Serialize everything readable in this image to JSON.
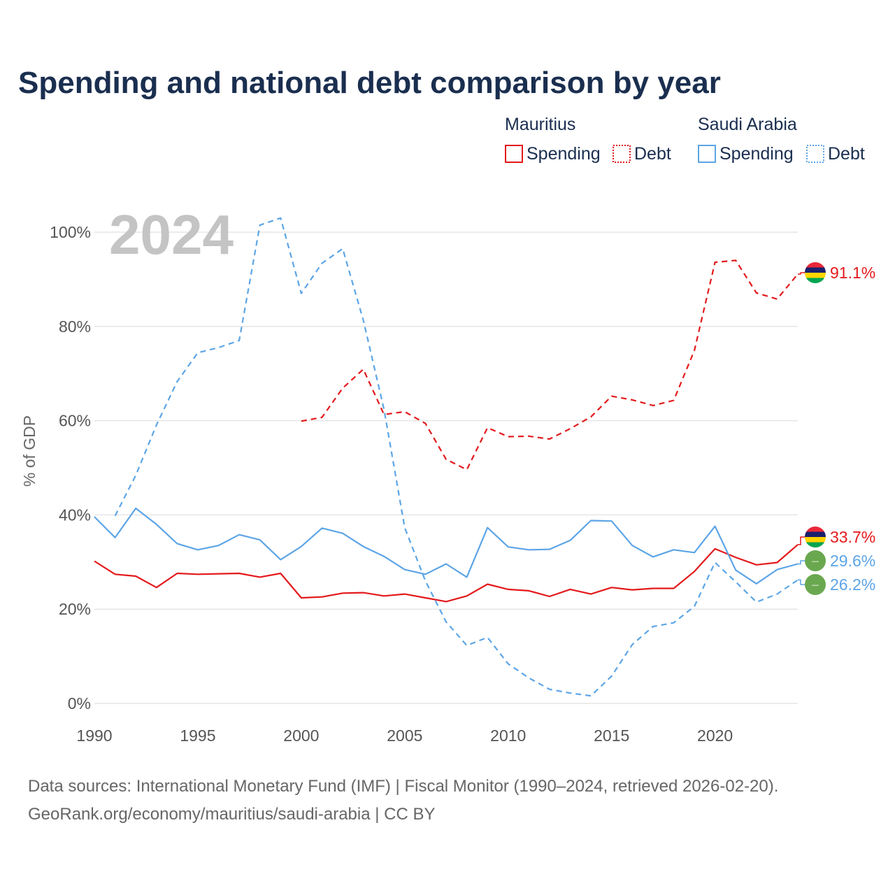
{
  "title": "Spending and national debt comparison by year",
  "year_overlay": "2024",
  "legend": {
    "groups": [
      {
        "name": "Mauritius",
        "color": "#e31a1c",
        "items": [
          {
            "label": "Spending",
            "style": "solid"
          },
          {
            "label": "Debt",
            "style": "dotted"
          }
        ]
      },
      {
        "name": "Saudi Arabia",
        "color": "#5da5e6",
        "items": [
          {
            "label": "Spending",
            "style": "solid"
          },
          {
            "label": "Debt",
            "style": "dotted"
          }
        ]
      }
    ]
  },
  "source_line1": "Data sources: International Monetary Fund (IMF) | Fiscal Monitor (1990–2024, retrieved 2026-02-20).",
  "source_line2": "GeoRank.org/economy/mauritius/saudi-arabia | CC BY",
  "chart_data": {
    "type": "line",
    "title": "Spending and national debt comparison by year",
    "xlabel": "",
    "ylabel": "% of GDP",
    "xlim": [
      1990,
      2024
    ],
    "ylim": [
      0,
      100
    ],
    "x_ticks": [
      1990,
      1995,
      2000,
      2005,
      2010,
      2015,
      2020
    ],
    "y_ticks": [
      0,
      20,
      40,
      60,
      80,
      100
    ],
    "y_tick_labels": [
      "0%",
      "20%",
      "40%",
      "60%",
      "80%",
      "100%"
    ],
    "grid": true,
    "series": [
      {
        "name": "Mauritius Spending",
        "country": "Mauritius",
        "kind": "Spending",
        "color": "#e31a1c",
        "dash": "solid",
        "flag": "mauritius",
        "end_label": "33.7%",
        "x": [
          1990,
          1991,
          1992,
          1993,
          1994,
          1995,
          1996,
          1997,
          1998,
          1999,
          2000,
          2001,
          2002,
          2003,
          2004,
          2005,
          2006,
          2007,
          2008,
          2009,
          2010,
          2011,
          2012,
          2013,
          2014,
          2015,
          2016,
          2017,
          2018,
          2019,
          2020,
          2021,
          2022,
          2023,
          2024
        ],
        "y": [
          30.2,
          27.4,
          27.0,
          24.6,
          27.6,
          27.4,
          27.5,
          27.6,
          26.8,
          27.6,
          22.4,
          22.6,
          23.4,
          23.5,
          22.8,
          23.2,
          22.4,
          21.6,
          22.8,
          25.3,
          24.2,
          23.9,
          22.7,
          24.2,
          23.2,
          24.6,
          24.1,
          24.4,
          24.4,
          28.0,
          32.8,
          31.0,
          29.4,
          29.9,
          33.7
        ]
      },
      {
        "name": "Mauritius Debt",
        "country": "Mauritius",
        "kind": "Debt",
        "color": "#e31a1c",
        "dash": "dashed",
        "flag": "mauritius",
        "end_label": "91.1%",
        "x": [
          2000,
          2001,
          2002,
          2003,
          2004,
          2005,
          2006,
          2007,
          2008,
          2009,
          2010,
          2011,
          2012,
          2013,
          2014,
          2015,
          2016,
          2017,
          2018,
          2019,
          2020,
          2021,
          2022,
          2023,
          2024
        ],
        "y": [
          59.9,
          60.7,
          66.9,
          70.9,
          61.3,
          61.9,
          59.4,
          51.8,
          49.6,
          58.5,
          56.6,
          56.7,
          56.1,
          58.3,
          60.8,
          65.2,
          64.4,
          63.2,
          64.3,
          74.9,
          93.6,
          94.0,
          87.1,
          85.8,
          91.1
        ]
      },
      {
        "name": "Saudi Arabia Spending",
        "country": "Saudi Arabia",
        "kind": "Spending",
        "color": "#5da5e6",
        "dash": "solid",
        "flag": "saudi",
        "end_label": "29.6%",
        "x": [
          1990,
          1991,
          1992,
          1993,
          1994,
          1995,
          1996,
          1997,
          1998,
          1999,
          2000,
          2001,
          2002,
          2003,
          2004,
          2005,
          2006,
          2007,
          2008,
          2009,
          2010,
          2011,
          2012,
          2013,
          2014,
          2015,
          2016,
          2017,
          2018,
          2019,
          2020,
          2021,
          2022,
          2023,
          2024
        ],
        "y": [
          39.6,
          35.2,
          41.4,
          38.0,
          33.9,
          32.6,
          33.5,
          35.8,
          34.7,
          30.5,
          33.3,
          37.2,
          36.1,
          33.3,
          31.2,
          28.4,
          27.4,
          29.6,
          26.8,
          37.3,
          33.2,
          32.6,
          32.7,
          34.6,
          38.8,
          38.7,
          33.5,
          31.1,
          32.6,
          32.0,
          37.6,
          28.3,
          25.4,
          28.4,
          29.6
        ]
      },
      {
        "name": "Saudi Arabia Debt",
        "country": "Saudi Arabia",
        "kind": "Debt",
        "color": "#5da5e6",
        "dash": "dashed",
        "flag": "saudi",
        "end_label": "26.2%",
        "x": [
          1991,
          1992,
          1993,
          1994,
          1995,
          1996,
          1997,
          1998,
          1999,
          2000,
          2001,
          2002,
          2003,
          2004,
          2005,
          2006,
          2007,
          2008,
          2009,
          2010,
          2011,
          2012,
          2013,
          2014,
          2015,
          2016,
          2017,
          2018,
          2019,
          2020,
          2021,
          2022,
          2023,
          2024
        ],
        "y": [
          39.8,
          48.4,
          59.1,
          68.3,
          74.4,
          75.5,
          77.0,
          101.5,
          103.0,
          87.0,
          93.4,
          96.5,
          81.3,
          62.4,
          37.3,
          26.0,
          17.3,
          12.3,
          14.0,
          8.4,
          5.4,
          3.0,
          2.2,
          1.6,
          5.8,
          12.5,
          16.3,
          17.1,
          20.6,
          29.9,
          25.8,
          21.5,
          23.2,
          26.2
        ]
      }
    ]
  }
}
